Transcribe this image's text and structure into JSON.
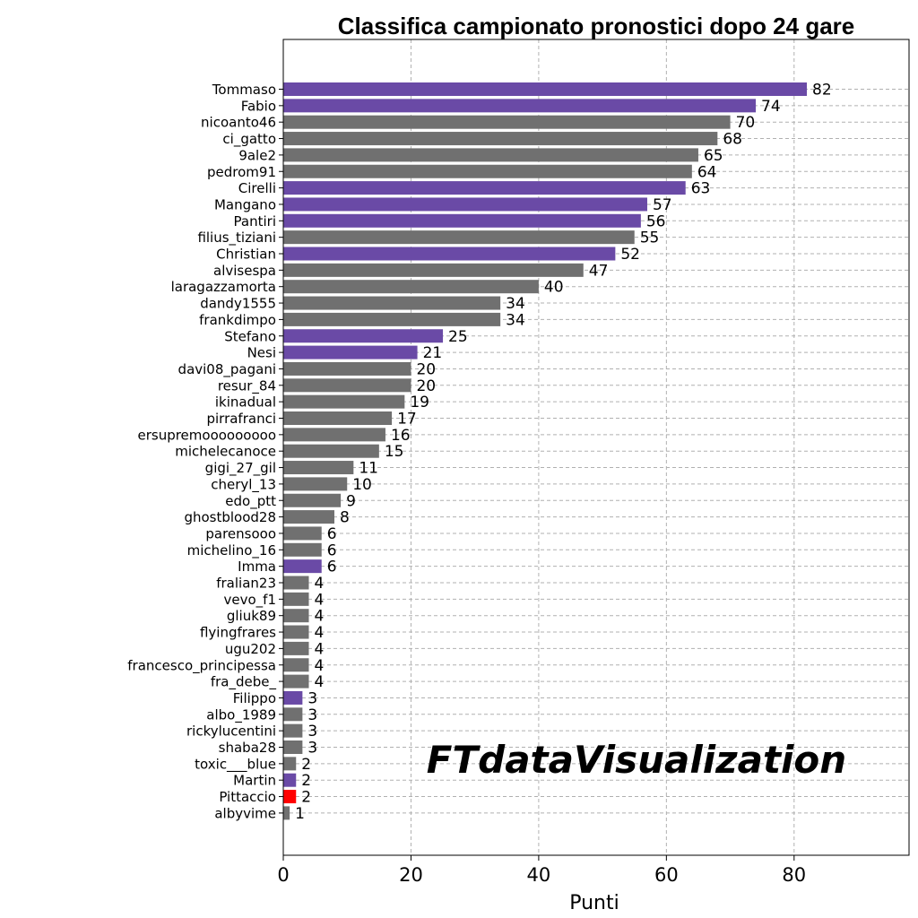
{
  "chart_data": {
    "type": "bar",
    "orientation": "horizontal",
    "title": "Classifica campionato pronostici dopo 24 gare",
    "xlabel": "Punti",
    "ylabel": "",
    "xlim": [
      0,
      98
    ],
    "xticks": [
      0,
      20,
      40,
      60,
      80
    ],
    "grid": true,
    "watermark": "FTdataVisualization",
    "colors": {
      "purple": "#6a4aa6",
      "gray": "#707070",
      "red": "#ff0000"
    },
    "categories": [
      "Tommaso",
      "Fabio",
      "nicoanto46",
      "ci_gatto",
      "9ale2",
      "pedrom91",
      "Cirelli",
      "Mangano",
      "Pantiri",
      "filius_tiziani",
      "Christian",
      "alvisespa",
      "laragazzamorta",
      "dandy1555",
      "frankdimpo",
      "Stefano",
      "Nesi",
      "davi08_pagani",
      "resur_84",
      "ikinadual",
      "pirrafranci",
      "ersupremooooooooo",
      "michelecanoce",
      "gigi_27_gil",
      "cheryl_13",
      "edo_ptt",
      "ghostblood28",
      "parensooo",
      "michelino_16",
      "Imma",
      "fralian23",
      "vevo_f1",
      "gliuk89",
      "flyingfrares",
      "ugu202",
      "francesco_principessa",
      "fra_debe_",
      "Filippo",
      "albo_1989",
      "rickylucentini",
      "shaba28",
      "toxic___blue",
      "Martin",
      "Pittaccio",
      "albyvime"
    ],
    "values": [
      82,
      74,
      70,
      68,
      65,
      64,
      63,
      57,
      56,
      55,
      52,
      47,
      40,
      34,
      34,
      25,
      21,
      20,
      20,
      19,
      17,
      16,
      15,
      11,
      10,
      9,
      8,
      6,
      6,
      6,
      4,
      4,
      4,
      4,
      4,
      4,
      4,
      3,
      3,
      3,
      3,
      2,
      2,
      2,
      1
    ],
    "bar_colors": [
      "purple",
      "purple",
      "gray",
      "gray",
      "gray",
      "gray",
      "purple",
      "purple",
      "purple",
      "gray",
      "purple",
      "gray",
      "gray",
      "gray",
      "gray",
      "purple",
      "purple",
      "gray",
      "gray",
      "gray",
      "gray",
      "gray",
      "gray",
      "gray",
      "gray",
      "gray",
      "gray",
      "gray",
      "gray",
      "purple",
      "gray",
      "gray",
      "gray",
      "gray",
      "gray",
      "gray",
      "gray",
      "purple",
      "gray",
      "gray",
      "gray",
      "gray",
      "purple",
      "red",
      "gray"
    ]
  }
}
